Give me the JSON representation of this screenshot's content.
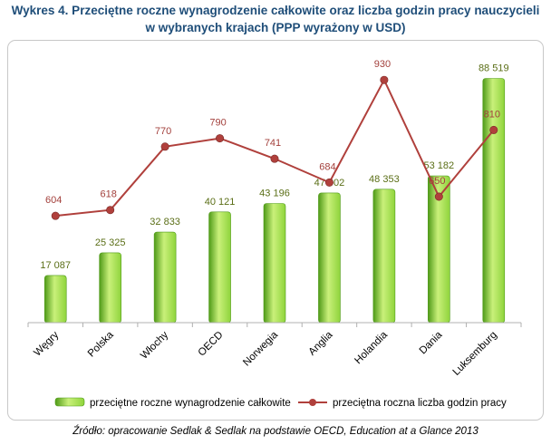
{
  "title": {
    "line1": "Wykres 4. Przeciętne roczne wynagrodzenie całkowite oraz liczba godzin pracy nauczycieli",
    "line2": "w wybranych krajach (PPP wyrażony w USD)"
  },
  "source": "Źródło: opracowanie Sedlak & Sedlak na podstawie OECD, Education at a Glance 2013",
  "colors": {
    "bar_light": "#c9f07a",
    "bar_mid": "#8fd43c",
    "bar_dark": "#4f9a18",
    "line": "#b0403c",
    "bar_label": "#5a6e16",
    "line_label": "#a3403c",
    "title": "#1f4e79"
  },
  "chart_data": {
    "type": "bar",
    "categories": [
      "Węgry",
      "Polska",
      "Włochy",
      "OECD",
      "Norwegia",
      "Anglia",
      "Holandia",
      "Dania",
      "Luksemburg"
    ],
    "category_labels": [
      "Węgry",
      "Polska",
      "Włochy",
      "OECD",
      "Norwegia",
      "Anglia",
      "Holandia",
      "Dania",
      "Luksemburg"
    ],
    "series": [
      {
        "name": "przeciętne roczne wynagrodzenie całkowite",
        "type": "bar",
        "values": [
          17087,
          25325,
          32833,
          40121,
          43196,
          47002,
          48353,
          53182,
          88519
        ],
        "labels": [
          "17 087",
          "25 325",
          "32 833",
          "40 121",
          "43 196",
          "47 002",
          "48 353",
          "53 182",
          "88 519"
        ]
      },
      {
        "name": "przeciętna roczna liczba godzin pracy",
        "type": "line",
        "values": [
          604,
          618,
          770,
          790,
          741,
          684,
          930,
          650,
          810
        ],
        "labels": [
          "604",
          "618",
          "770",
          "790",
          "741",
          "684",
          "930",
          "650",
          "810"
        ]
      }
    ],
    "bar_ylim": [
      0,
      90000
    ],
    "line_ylim": [
      350,
      950
    ],
    "legend": [
      "przeciętne roczne wynagrodzenie całkowite",
      "przeciętna roczna liczba godzin pracy"
    ],
    "legend_position": "bottom",
    "grid": false
  }
}
